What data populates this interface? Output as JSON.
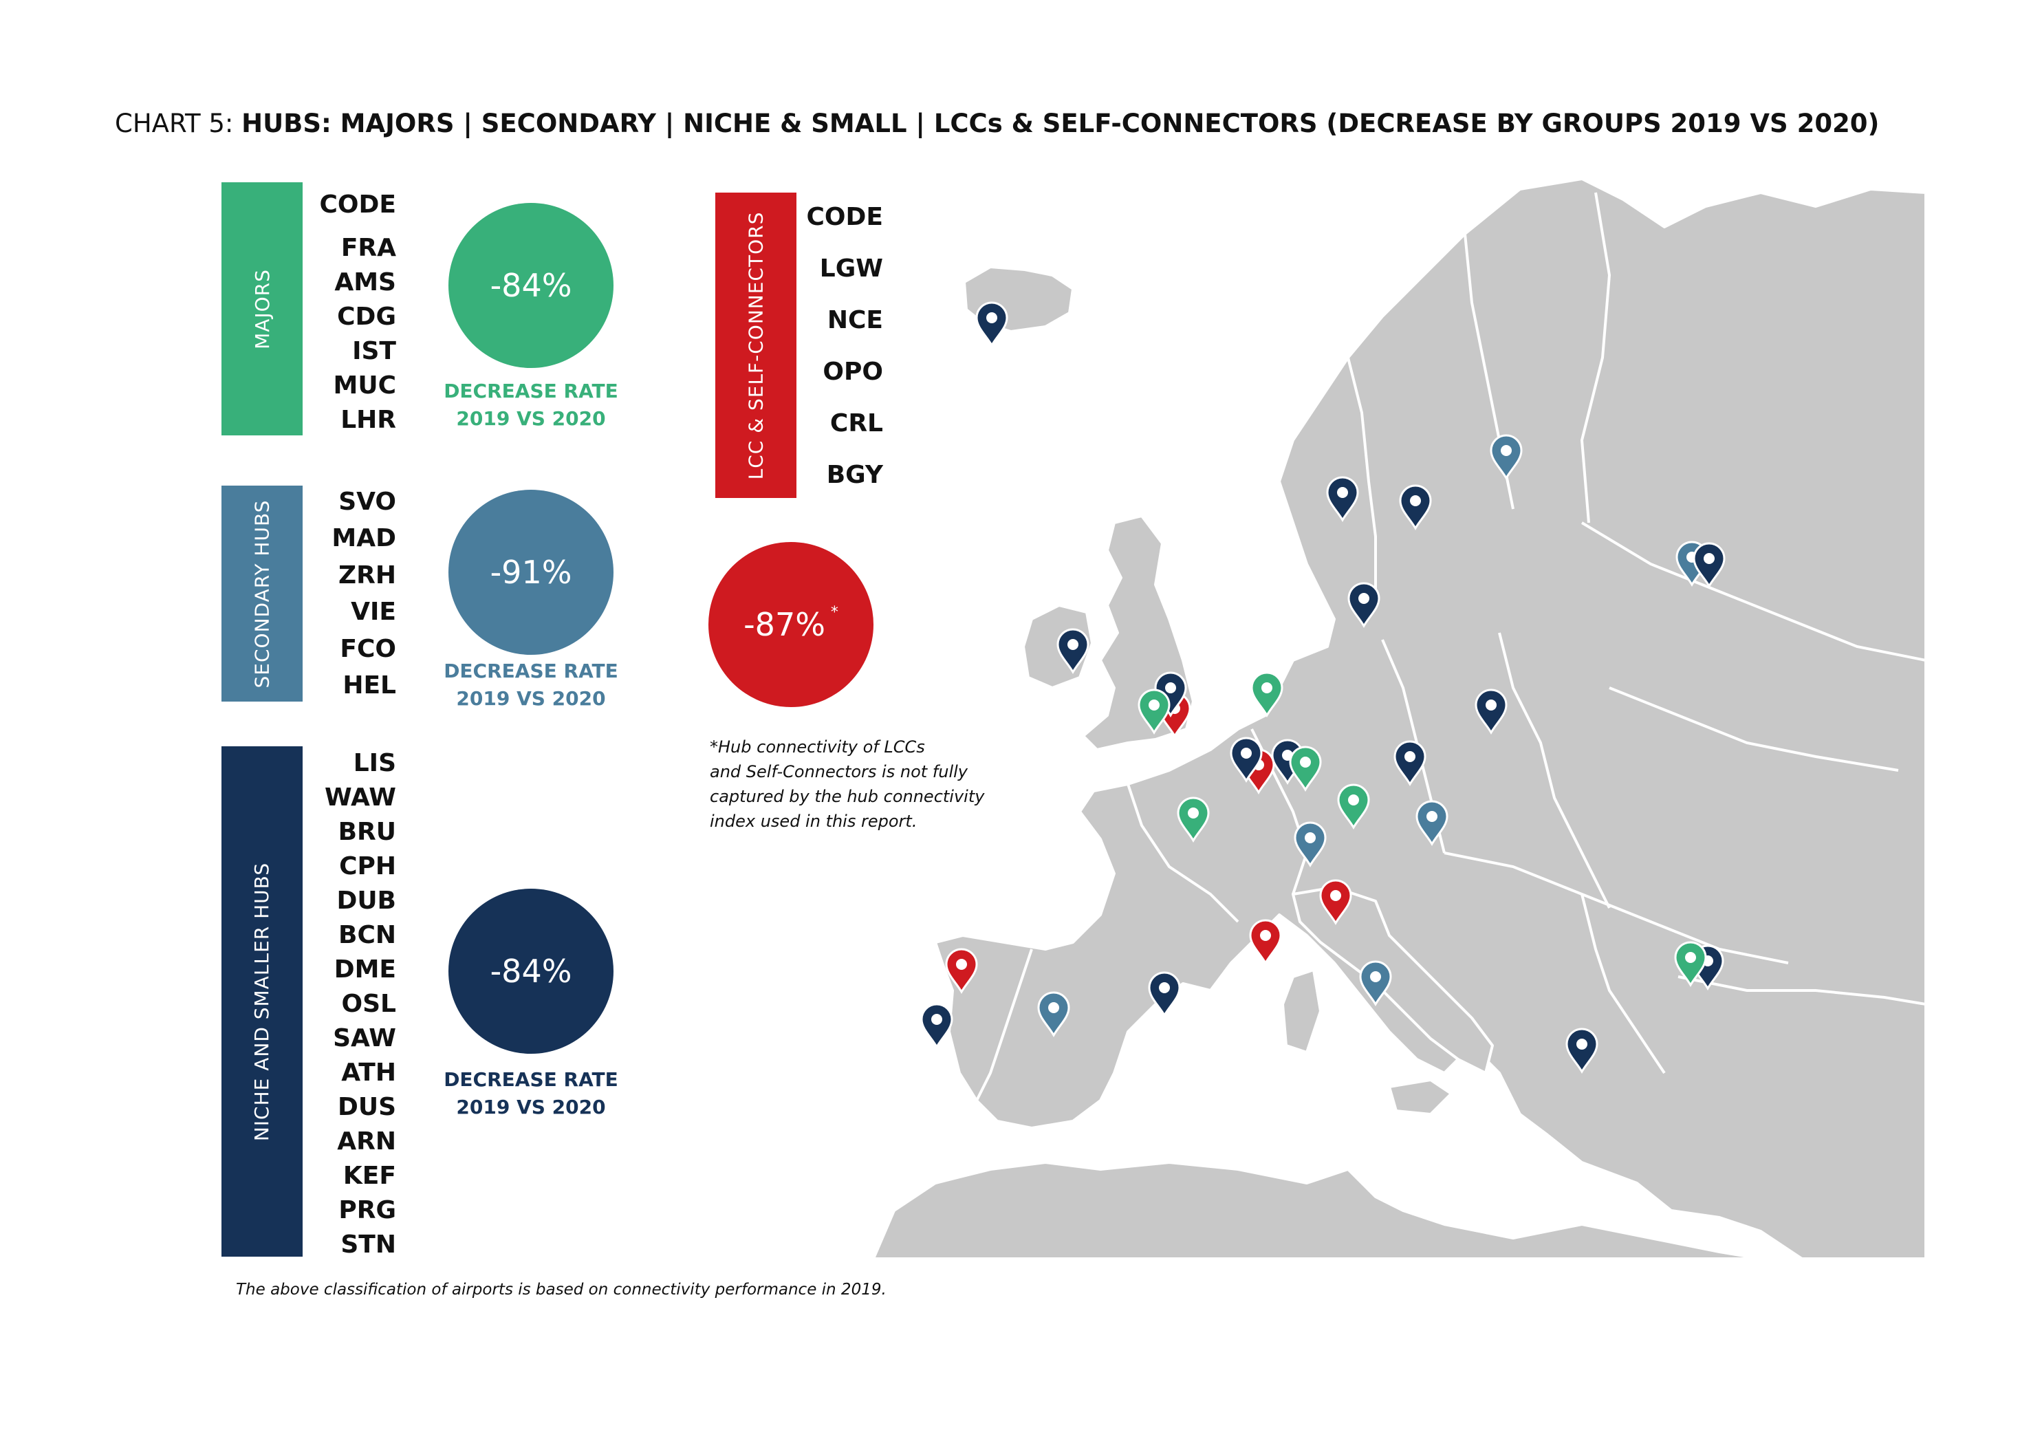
{
  "title": {
    "prefix": "CHART 5: ",
    "main": "HUBS: MAJORS | SECONDARY | NICHE & SMALL | LCCs & SELF-CONNECTORS (DECREASE BY GROUPS 2019 VS 2020)"
  },
  "colors": {
    "majors": "#38b07a",
    "secondary": "#4a7d9c",
    "niche": "#163257",
    "lcc": "#cf1a20",
    "land": "#c8c8c8",
    "border": "#ffffff"
  },
  "majors": {
    "label": "MAJORS",
    "code_header": "CODE",
    "codes": [
      "FRA",
      "AMS",
      "CDG",
      "IST",
      "MUC",
      "LHR"
    ],
    "percent": "-84%",
    "rate_line1": "DECREASE RATE",
    "rate_line2": "2019 VS 2020"
  },
  "secondary": {
    "label": "SECONDARY HUBS",
    "codes": [
      "SVO",
      "MAD",
      "ZRH",
      "VIE",
      "FCO",
      "HEL"
    ],
    "percent": "-91%",
    "rate_line1": "DECREASE RATE",
    "rate_line2": "2019 VS 2020"
  },
  "niche": {
    "label": "NICHE AND SMALLER HUBS",
    "codes": [
      "LIS",
      "WAW",
      "BRU",
      "CPH",
      "DUB",
      "BCN",
      "DME",
      "OSL",
      "SAW",
      "ATH",
      "DUS",
      "ARN",
      "KEF",
      "PRG",
      "STN"
    ],
    "percent": "-84%",
    "rate_line1": "DECREASE RATE",
    "rate_line2": "2019 VS 2020"
  },
  "lcc": {
    "label": "LCC & SELF-CONNECTORS",
    "code_header": "CODE",
    "codes": [
      "LGW",
      "NCE",
      "OPO",
      "CRL",
      "BGY"
    ],
    "percent": "-87%",
    "asterisk": "*",
    "note": [
      "*Hub connectivity of LCCs",
      "and Self-Connectors is not fully",
      "captured by the hub connectivity",
      "index used in this report."
    ]
  },
  "footer": "The above classification of airports is based on connectivity performance in 2019.",
  "map_pins": [
    {
      "group": "niche",
      "icon": "map-pin-icon"
    },
    {
      "group": "secondary",
      "icon": "map-pin-icon"
    },
    {
      "group": "niche",
      "icon": "map-pin-icon"
    },
    {
      "group": "niche",
      "icon": "map-pin-icon"
    },
    {
      "group": "secondary",
      "icon": "map-pin-icon"
    },
    {
      "group": "niche",
      "icon": "map-pin-icon"
    },
    {
      "group": "niche",
      "icon": "map-pin-icon"
    },
    {
      "group": "niche",
      "icon": "map-pin-icon"
    },
    {
      "group": "lcc",
      "icon": "map-pin-icon"
    },
    {
      "group": "niche",
      "icon": "map-pin-icon"
    },
    {
      "group": "majors",
      "icon": "map-pin-icon"
    },
    {
      "group": "majors",
      "icon": "map-pin-icon"
    },
    {
      "group": "niche",
      "icon": "map-pin-icon"
    },
    {
      "group": "niche",
      "icon": "map-pin-icon"
    },
    {
      "group": "lcc",
      "icon": "map-pin-icon"
    },
    {
      "group": "niche",
      "icon": "map-pin-icon"
    },
    {
      "group": "majors",
      "icon": "map-pin-icon"
    },
    {
      "group": "niche",
      "icon": "map-pin-icon"
    },
    {
      "group": "majors",
      "icon": "map-pin-icon"
    },
    {
      "group": "secondary",
      "icon": "map-pin-icon"
    },
    {
      "group": "majors",
      "icon": "map-pin-icon"
    },
    {
      "group": "secondary",
      "icon": "map-pin-icon"
    },
    {
      "group": "lcc",
      "icon": "map-pin-icon"
    },
    {
      "group": "lcc",
      "icon": "map-pin-icon"
    },
    {
      "group": "lcc",
      "icon": "map-pin-icon"
    },
    {
      "group": "niche",
      "icon": "map-pin-icon"
    },
    {
      "group": "niche",
      "icon": "map-pin-icon"
    },
    {
      "group": "secondary",
      "icon": "map-pin-icon"
    },
    {
      "group": "secondary",
      "icon": "map-pin-icon"
    },
    {
      "group": "niche",
      "icon": "map-pin-icon"
    },
    {
      "group": "majors",
      "icon": "map-pin-icon"
    },
    {
      "group": "niche",
      "icon": "map-pin-icon"
    }
  ]
}
